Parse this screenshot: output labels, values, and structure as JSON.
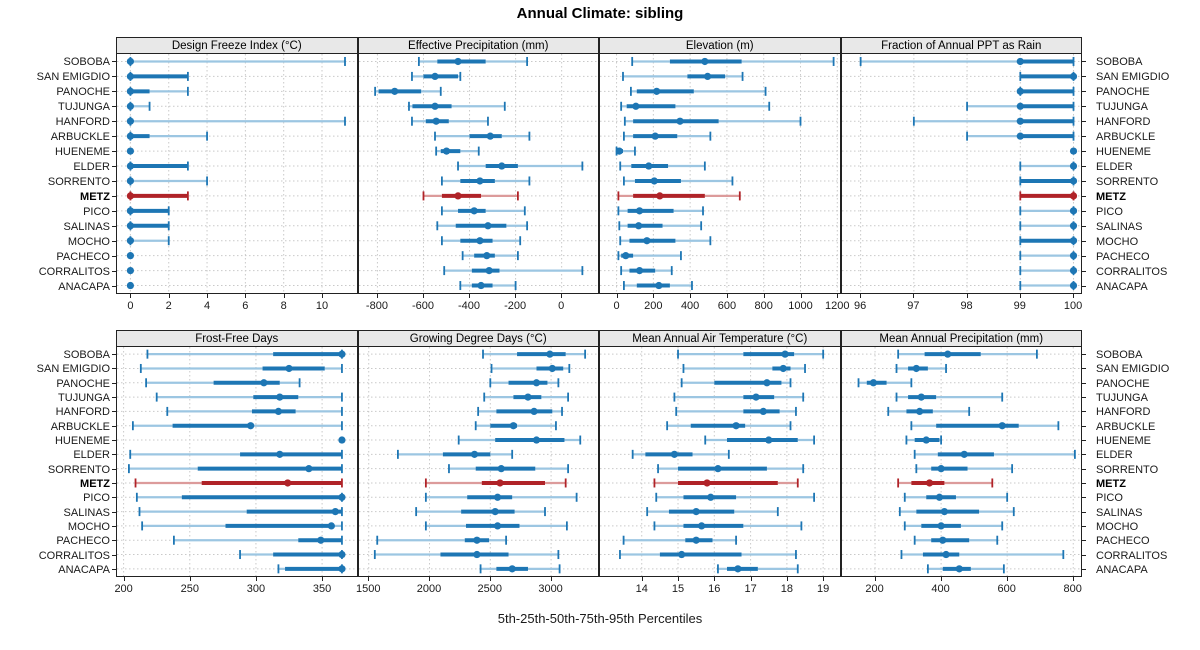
{
  "title": "Annual Climate: sibling",
  "caption": "5th-25th-50th-75th-95th Percentiles",
  "sites": [
    "SOBOBA",
    "SAN EMIGDIO",
    "PANOCHE",
    "TUJUNGA",
    "HANFORD",
    "ARBUCKLE",
    "HUENEME",
    "ELDER",
    "SORRENTO",
    "METZ",
    "PICO",
    "SALINAS",
    "MOCHO",
    "PACHECO",
    "CORRALITOS",
    "ANACAPA"
  ],
  "highlight_site": "METZ",
  "percentiles": [
    5,
    25,
    50,
    75,
    95
  ],
  "colors": {
    "blue": "#1d76b4",
    "blue_light": "#9cc6e2",
    "red": "#b02328",
    "red_light": "#dc9b9b",
    "grid": "#c9c9c9",
    "strip_bg": "#e8e8e8",
    "border": "#222222"
  },
  "chart_data": [
    {
      "type": "dotplot",
      "title": "Design Freeze Index (°C)",
      "row": 0,
      "col": 0,
      "xlim": [
        -0.7,
        11.8
      ],
      "ticks": [
        0,
        2,
        4,
        6,
        8,
        10
      ],
      "values": [
        [
          0,
          0,
          0,
          0,
          11.2
        ],
        [
          0,
          0,
          0,
          3,
          3
        ],
        [
          0,
          0,
          0,
          1,
          3
        ],
        [
          0,
          0,
          0,
          0,
          1
        ],
        [
          0,
          0,
          0,
          0,
          11.2
        ],
        [
          0,
          0,
          0,
          1,
          4
        ],
        [
          0,
          0,
          0,
          0,
          0
        ],
        [
          0,
          0,
          0,
          3,
          3
        ],
        [
          0,
          0,
          0,
          0,
          4
        ],
        [
          0,
          0,
          0,
          3,
          3
        ],
        [
          0,
          0,
          0,
          2,
          2
        ],
        [
          0,
          0,
          0,
          2,
          2
        ],
        [
          0,
          0,
          0,
          0,
          2
        ],
        [
          0,
          0,
          0,
          0,
          0
        ],
        [
          0,
          0,
          0,
          0,
          0
        ],
        [
          0,
          0,
          0,
          0,
          0
        ]
      ]
    },
    {
      "type": "dotplot",
      "title": "Effective Precipitation (mm)",
      "row": 0,
      "col": 1,
      "xlim": [
        -880,
        160
      ],
      "ticks": [
        -800,
        -600,
        -400,
        -200,
        0
      ],
      "values": [
        [
          -620,
          -540,
          -450,
          -330,
          -150
        ],
        [
          -650,
          -600,
          -550,
          -450,
          -440
        ],
        [
          -810,
          -795,
          -725,
          -610,
          -525
        ],
        [
          -663,
          -648,
          -550,
          -478,
          -247
        ],
        [
          -650,
          -590,
          -545,
          -490,
          -320
        ],
        [
          -550,
          -400,
          -310,
          -260,
          -140
        ],
        [
          -545,
          -525,
          -500,
          -440,
          -360
        ],
        [
          -450,
          -330,
          -260,
          -190,
          90
        ],
        [
          -520,
          -440,
          -355,
          -290,
          -140
        ],
        [
          -600,
          -520,
          -450,
          -350,
          -190
        ],
        [
          -520,
          -450,
          -380,
          -330,
          -160
        ],
        [
          -540,
          -460,
          -320,
          -240,
          -150
        ],
        [
          -520,
          -440,
          -355,
          -300,
          -180
        ],
        [
          -430,
          -380,
          -325,
          -290,
          -190
        ],
        [
          -510,
          -390,
          -315,
          -270,
          90
        ],
        [
          -440,
          -390,
          -350,
          -300,
          -200
        ]
      ]
    },
    {
      "type": "dotplot",
      "title": "Elevation (m)",
      "row": 0,
      "col": 2,
      "xlim": [
        -90,
        1212
      ],
      "ticks": [
        0,
        200,
        400,
        600,
        800,
        1000,
        1200
      ],
      "values": [
        [
          85,
          290,
          480,
          680,
          1180
        ],
        [
          35,
          385,
          495,
          590,
          685
        ],
        [
          78,
          110,
          218,
          420,
          810
        ],
        [
          25,
          55,
          105,
          320,
          830
        ],
        [
          45,
          90,
          345,
          555,
          1000
        ],
        [
          40,
          90,
          210,
          330,
          510
        ],
        [
          0,
          5,
          15,
          35,
          100
        ],
        [
          20,
          80,
          175,
          280,
          480
        ],
        [
          40,
          100,
          205,
          350,
          630
        ],
        [
          10,
          90,
          235,
          480,
          670
        ],
        [
          10,
          60,
          125,
          310,
          470
        ],
        [
          15,
          60,
          120,
          250,
          460
        ],
        [
          20,
          70,
          165,
          320,
          510
        ],
        [
          10,
          25,
          50,
          90,
          350
        ],
        [
          25,
          70,
          125,
          210,
          300
        ],
        [
          40,
          110,
          230,
          290,
          410
        ]
      ]
    },
    {
      "type": "dotplot",
      "title": "Fraction of Annual PPT as Rain",
      "row": 0,
      "col": 3,
      "xlim": [
        95.65,
        100.15
      ],
      "ticks": [
        96,
        97,
        98,
        99,
        100
      ],
      "values": [
        [
          96,
          99,
          99,
          100,
          100
        ],
        [
          99,
          99,
          100,
          100,
          100
        ],
        [
          99,
          99,
          99,
          100,
          100
        ],
        [
          98,
          99,
          99,
          100,
          100
        ],
        [
          97,
          99,
          99,
          100,
          100
        ],
        [
          98,
          99,
          99,
          100,
          100
        ],
        [
          100,
          100,
          100,
          100,
          100
        ],
        [
          99,
          100,
          100,
          100,
          100
        ],
        [
          99,
          99,
          100,
          100,
          100
        ],
        [
          99,
          99,
          100,
          100,
          100
        ],
        [
          99,
          100,
          100,
          100,
          100
        ],
        [
          99,
          100,
          100,
          100,
          100
        ],
        [
          99,
          99,
          100,
          100,
          100
        ],
        [
          99,
          100,
          100,
          100,
          100
        ],
        [
          99,
          100,
          100,
          100,
          100
        ],
        [
          99,
          100,
          100,
          100,
          100
        ]
      ]
    },
    {
      "type": "dotplot",
      "title": "Frost-Free Days",
      "row": 1,
      "col": 0,
      "xlim": [
        195,
        376
      ],
      "ticks": [
        200,
        250,
        300,
        350
      ],
      "values": [
        [
          218,
          313,
          365,
          365,
          365
        ],
        [
          213,
          305,
          325,
          352,
          365
        ],
        [
          217,
          268,
          306,
          318,
          333
        ],
        [
          225,
          298,
          318,
          332,
          365
        ],
        [
          233,
          297,
          317,
          330,
          365
        ],
        [
          207,
          237,
          296,
          298,
          365
        ],
        [
          365,
          365,
          365,
          365,
          365
        ],
        [
          205,
          288,
          318,
          365,
          365
        ],
        [
          204,
          256,
          340,
          365,
          365
        ],
        [
          209,
          259,
          324,
          365,
          365
        ],
        [
          210,
          244,
          365,
          365,
          365
        ],
        [
          212,
          293,
          360,
          365,
          365
        ],
        [
          214,
          277,
          357,
          358,
          365
        ],
        [
          238,
          332,
          349,
          365,
          365
        ],
        [
          288,
          313,
          365,
          365,
          365
        ],
        [
          317,
          322,
          365,
          365,
          365
        ]
      ]
    },
    {
      "type": "dotplot",
      "title": "Growing Degree Days (°C)",
      "row": 1,
      "col": 1,
      "xlim": [
        1420,
        3390
      ],
      "ticks": [
        1500,
        2000,
        2500,
        3000
      ],
      "values": [
        [
          2440,
          2720,
          2990,
          3120,
          3280
        ],
        [
          2510,
          2880,
          3010,
          3100,
          3150
        ],
        [
          2500,
          2650,
          2880,
          2970,
          3060
        ],
        [
          2450,
          2690,
          2810,
          2920,
          3140
        ],
        [
          2400,
          2550,
          2860,
          3010,
          3090
        ],
        [
          2380,
          2500,
          2690,
          2720,
          3040
        ],
        [
          2240,
          2540,
          2880,
          3110,
          3240
        ],
        [
          1740,
          2110,
          2370,
          2500,
          2680
        ],
        [
          2160,
          2380,
          2590,
          2870,
          3140
        ],
        [
          1970,
          2430,
          2580,
          2950,
          3120
        ],
        [
          1970,
          2310,
          2560,
          2680,
          3210
        ],
        [
          1890,
          2260,
          2540,
          2700,
          2950
        ],
        [
          1970,
          2300,
          2560,
          2740,
          3130
        ],
        [
          1570,
          2290,
          2390,
          2490,
          2630
        ],
        [
          1550,
          2090,
          2390,
          2650,
          3060
        ],
        [
          2420,
          2550,
          2680,
          2810,
          3070
        ]
      ]
    },
    {
      "type": "dotplot",
      "title": "Mean Annual Air Temperature (°C)",
      "row": 1,
      "col": 2,
      "xlim": [
        12.85,
        19.45
      ],
      "ticks": [
        14,
        15,
        16,
        17,
        18,
        19
      ],
      "values": [
        [
          15.0,
          16.8,
          17.95,
          18.2,
          19.0
        ],
        [
          15.15,
          17.6,
          17.9,
          18.1,
          18.5
        ],
        [
          15.1,
          16.0,
          17.45,
          17.85,
          18.1
        ],
        [
          14.9,
          16.8,
          17.15,
          17.65,
          18.45
        ],
        [
          14.95,
          16.8,
          17.35,
          17.8,
          18.25
        ],
        [
          14.7,
          15.35,
          16.6,
          16.85,
          18.1
        ],
        [
          15.75,
          16.35,
          17.5,
          18.3,
          18.75
        ],
        [
          13.75,
          14.1,
          14.9,
          15.4,
          16.4
        ],
        [
          14.45,
          15.0,
          16.1,
          17.45,
          18.45
        ],
        [
          14.35,
          15.0,
          15.8,
          17.75,
          18.3
        ],
        [
          14.4,
          15.15,
          15.9,
          16.6,
          18.75
        ],
        [
          14.15,
          14.75,
          15.5,
          16.55,
          17.75
        ],
        [
          14.35,
          15.15,
          15.65,
          16.8,
          18.4
        ],
        [
          13.5,
          15.2,
          15.5,
          15.95,
          16.6
        ],
        [
          13.4,
          14.5,
          15.1,
          16.75,
          18.25
        ],
        [
          16.1,
          16.35,
          16.65,
          17.2,
          18.3
        ]
      ]
    },
    {
      "type": "dotplot",
      "title": "Mean Annual Precipitation (mm)",
      "row": 1,
      "col": 3,
      "xlim": [
        100,
        825
      ],
      "ticks": [
        200,
        400,
        600,
        800
      ],
      "values": [
        [
          270,
          350,
          420,
          520,
          690
        ],
        [
          265,
          300,
          325,
          360,
          415
        ],
        [
          150,
          175,
          195,
          235,
          310
        ],
        [
          265,
          300,
          340,
          385,
          585
        ],
        [
          240,
          295,
          335,
          375,
          485
        ],
        [
          310,
          385,
          585,
          635,
          755
        ],
        [
          295,
          320,
          355,
          395,
          400
        ],
        [
          320,
          390,
          470,
          560,
          805
        ],
        [
          325,
          370,
          400,
          480,
          615
        ],
        [
          270,
          310,
          365,
          410,
          555
        ],
        [
          290,
          355,
          395,
          445,
          600
        ],
        [
          275,
          325,
          410,
          515,
          620
        ],
        [
          290,
          340,
          400,
          460,
          585
        ],
        [
          320,
          370,
          405,
          485,
          570
        ],
        [
          280,
          345,
          415,
          455,
          770
        ],
        [
          360,
          405,
          455,
          490,
          590
        ]
      ]
    }
  ]
}
